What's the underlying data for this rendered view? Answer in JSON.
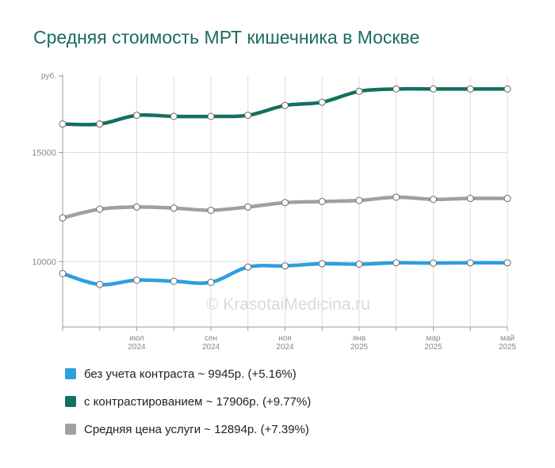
{
  "title": "Средняя стоимость МРТ кишечника в Москве",
  "watermark": "© KrasotaiMedicina.ru",
  "colors": {
    "title": "#1a6b60",
    "grid": "#dddddd",
    "axis": "#999999",
    "tick_label": "#888888",
    "point_fill": "#ffffff"
  },
  "chart_data": {
    "type": "line",
    "y_unit_label": "руб.",
    "ylim": [
      7000,
      18500
    ],
    "yticks": [
      10000,
      15000
    ],
    "x_months": [
      "2024-05",
      "2024-06",
      "2024-07",
      "2024-08",
      "2024-09",
      "2024-10",
      "2024-11",
      "2024-12",
      "2025-01",
      "2025-02",
      "2025-03",
      "2025-04",
      "2025-05"
    ],
    "x_tick_labels": [
      {
        "month": "2024-07",
        "line1": "июл",
        "line2": "2024"
      },
      {
        "month": "2024-09",
        "line1": "сен",
        "line2": "2024"
      },
      {
        "month": "2024-11",
        "line1": "ноя",
        "line2": "2024"
      },
      {
        "month": "2025-01",
        "line1": "янв",
        "line2": "2025"
      },
      {
        "month": "2025-03",
        "line1": "мар",
        "line2": "2025"
      },
      {
        "month": "2025-05",
        "line1": "май",
        "line2": "2025"
      }
    ],
    "grid": true,
    "legend_position": "bottom",
    "series": [
      {
        "name": "с контрастированием",
        "color": "#127060",
        "values": [
          16300,
          16300,
          16700,
          16650,
          16650,
          16700,
          17150,
          17300,
          17800,
          17906,
          17906,
          17906,
          17906
        ]
      },
      {
        "name": "Средняя цена услуги",
        "color": "#a0a0a0",
        "values": [
          12000,
          12400,
          12500,
          12450,
          12350,
          12500,
          12700,
          12750,
          12800,
          12950,
          12850,
          12894,
          12894
        ]
      },
      {
        "name": "без учета контраста",
        "color": "#2b9fe0",
        "values": [
          9450,
          8950,
          9150,
          9100,
          9050,
          9750,
          9800,
          9900,
          9880,
          9945,
          9930,
          9945,
          9945
        ]
      }
    ]
  },
  "legend": [
    {
      "label": "без учета контраста ~ 9945р. (+5.16%)",
      "color": "#2b9fe0"
    },
    {
      "label": "с контрастированием ~ 17906р. (+9.77%)",
      "color": "#127060"
    },
    {
      "label": "Средняя цена услуги ~ 12894р. (+7.39%)",
      "color": "#a0a0a0"
    }
  ]
}
